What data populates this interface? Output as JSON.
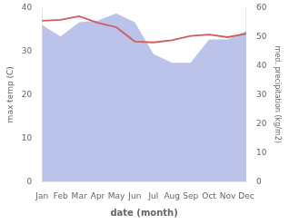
{
  "chart_data": {
    "type": "line",
    "categories": [
      "Jan",
      "Feb",
      "Mar",
      "Apr",
      "May",
      "Jun",
      "Jul",
      "Aug",
      "Sep",
      "Oct",
      "Nov",
      "Dec"
    ],
    "x_label": "date (month)",
    "y_label": "max temp (C)",
    "y2_label": "med. precipitation (kg/m2)",
    "series": [
      {
        "type": "area",
        "axis": "y2",
        "color": "#b0b8e8",
        "values": [
          54.0,
          50.0,
          55.0,
          55.5,
          58.0,
          55.0,
          44.0,
          41.0,
          41.0,
          49.0,
          49.0,
          52.0
        ]
      },
      {
        "type": "line",
        "color": "#cd5c5c",
        "values": [
          37.0,
          37.2,
          38.0,
          36.5,
          35.5,
          32.2,
          32.0,
          32.5,
          33.5,
          33.8,
          33.2,
          34.0
        ]
      }
    ],
    "ylim": [
      0,
      40
    ],
    "yticks": [
      0,
      10,
      20,
      30,
      40
    ],
    "y2lim": [
      0,
      60
    ],
    "y2ticks": [
      0,
      10,
      20,
      30,
      40,
      50,
      60
    ],
    "grid": false
  }
}
